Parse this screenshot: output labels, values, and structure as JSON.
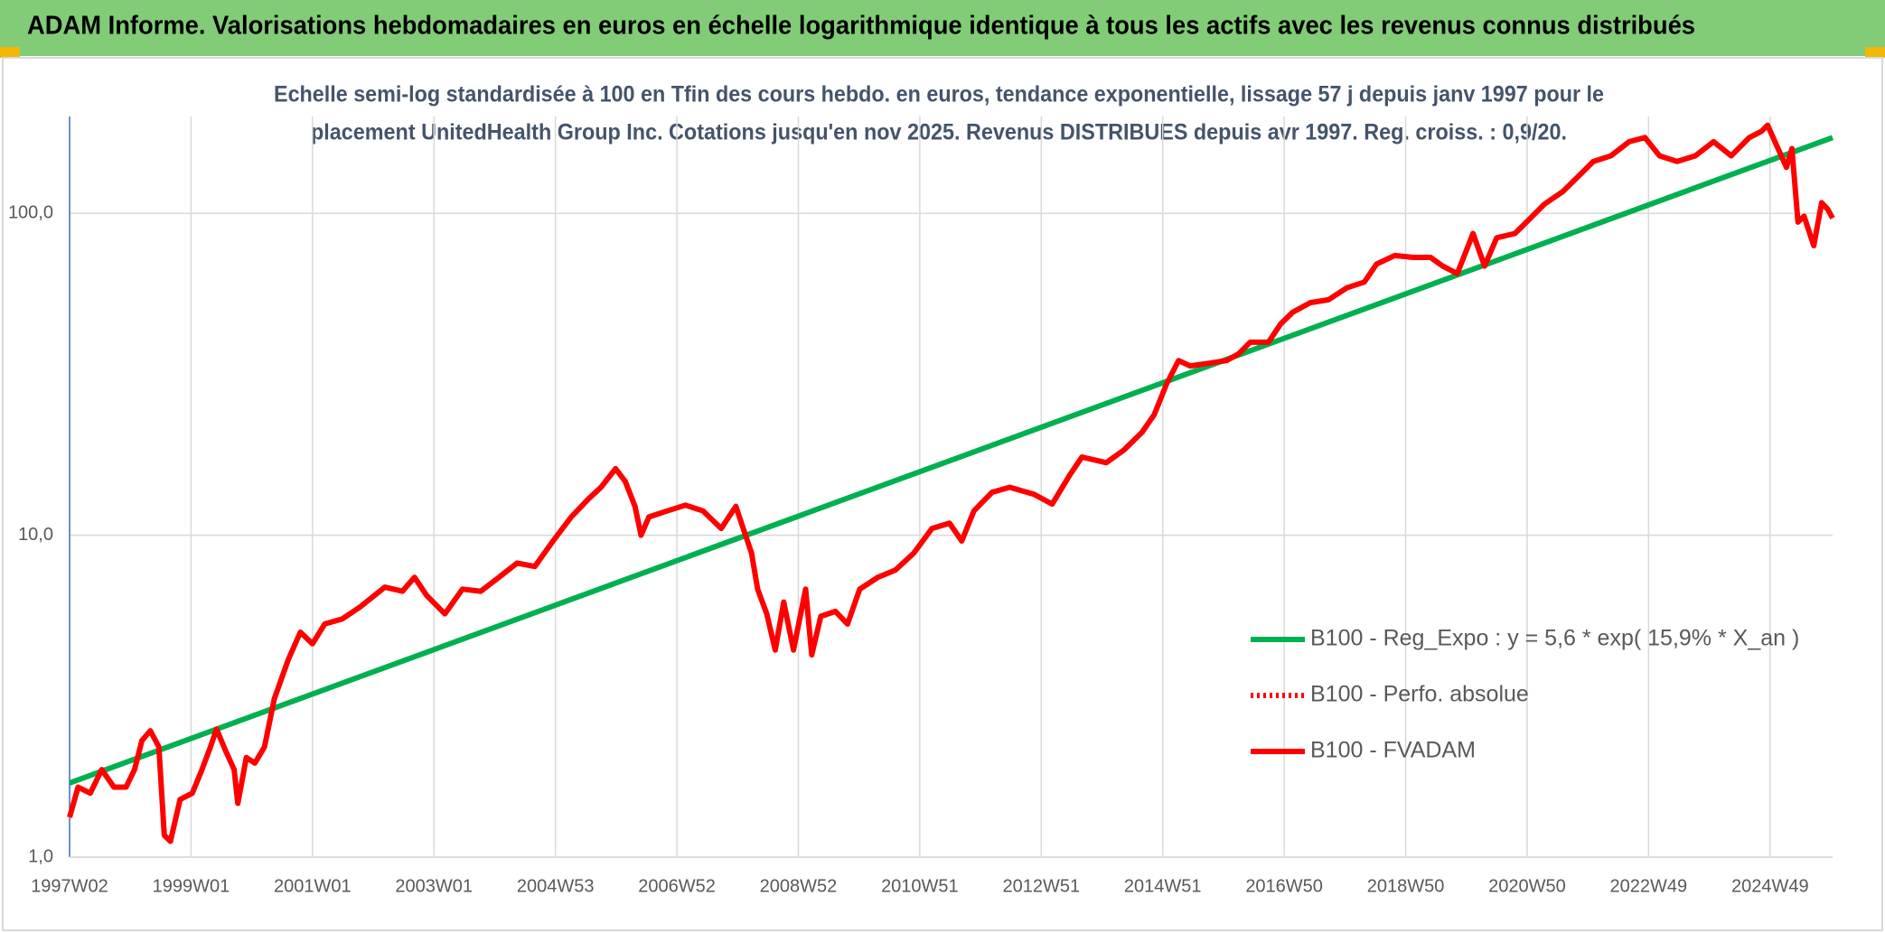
{
  "chart_data": {
    "type": "line",
    "title": "ADAM Informe. Valorisations hebdomadaires en euros en échelle logarithmique identique à tous les actifs avec les revenus connus distribués",
    "subtitle": [
      "Echelle semi-log standardisée à 100 en Tfin des cours hebdo. en euros, tendance exponentielle, lissage 57 j depuis janv 1997 pour le",
      "placement UnitedHealth Group Inc. Cotations jusqu'en nov 2025. Revenus DISTRIBUES depuis avr 1997. Reg. croiss. : 0,9/20."
    ],
    "log_scale": true,
    "grid": true,
    "legend": "center right",
    "xlim": [
      1997.0,
      2026.03
    ],
    "xticks": [
      {
        "value": 1997.0,
        "label": "1997W02"
      },
      {
        "value": 1999.0,
        "label": "1999W01"
      },
      {
        "value": 2001.0,
        "label": "2001W01"
      },
      {
        "value": 2003.0,
        "label": "2003W01"
      },
      {
        "value": 2005.0,
        "label": "2004W53"
      },
      {
        "value": 2007.0,
        "label": "2006W52"
      },
      {
        "value": 2009.0,
        "label": "2008W52"
      },
      {
        "value": 2011.0,
        "label": "2010W51"
      },
      {
        "value": 2013.0,
        "label": "2012W51"
      },
      {
        "value": 2015.0,
        "label": "2014W51"
      },
      {
        "value": 2017.0,
        "label": "2016W50"
      },
      {
        "value": 2019.0,
        "label": "2018W50"
      },
      {
        "value": 2021.0,
        "label": "2020W50"
      },
      {
        "value": 2023.0,
        "label": "2022W49"
      },
      {
        "value": 2025.0,
        "label": "2024W49"
      }
    ],
    "ylim": [
      1,
      200
    ],
    "yticks": [
      {
        "value": 1,
        "label": "1,0"
      },
      {
        "value": 10,
        "label": "10,0"
      },
      {
        "value": 100,
        "label": "100,0"
      }
    ],
    "series": [
      {
        "name": "B100 - Reg_Expo : y = 5,6 * exp( 15,9% *  X_an )",
        "color": "#00b050",
        "style": "solid",
        "x": [
          1997.0,
          2026.03
        ],
        "values": [
          1.7,
          172
        ]
      },
      {
        "name": "B100 - Perfo. absolue",
        "color": "#ff0000",
        "style": "dotted",
        "x": [],
        "values": []
      },
      {
        "name": "B100 - FVADAM",
        "color": "#ff0000",
        "style": "solid",
        "x": [
          1997.0,
          1997.14,
          1997.34,
          1997.53,
          1997.73,
          1997.93,
          1998.07,
          1998.19,
          1998.33,
          1998.47,
          1998.56,
          1998.66,
          1998.82,
          1999.02,
          1999.18,
          1999.32,
          1999.42,
          1999.57,
          1999.71,
          1999.77,
          1999.91,
          2000.05,
          2000.21,
          2000.37,
          2000.6,
          2000.8,
          2001.0,
          2001.2,
          2001.49,
          2001.79,
          2002.19,
          2002.48,
          2002.68,
          2002.88,
          2003.18,
          2003.47,
          2003.77,
          2004.07,
          2004.37,
          2004.66,
          2004.96,
          2005.26,
          2005.55,
          2005.75,
          2005.99,
          2006.15,
          2006.31,
          2006.41,
          2006.54,
          2006.84,
          2007.14,
          2007.43,
          2007.73,
          2007.97,
          2008.13,
          2008.23,
          2008.33,
          2008.48,
          2008.62,
          2008.76,
          2008.92,
          2009.12,
          2009.22,
          2009.37,
          2009.61,
          2009.81,
          2010.01,
          2010.31,
          2010.6,
          2010.9,
          2011.2,
          2011.49,
          2011.69,
          2011.89,
          2012.19,
          2012.48,
          2012.88,
          2013.18,
          2013.47,
          2013.67,
          2014.07,
          2014.36,
          2014.66,
          2014.86,
          2015.06,
          2015.26,
          2015.45,
          2015.75,
          2016.05,
          2016.25,
          2016.44,
          2016.74,
          2016.94,
          2017.14,
          2017.43,
          2017.73,
          2018.03,
          2018.32,
          2018.52,
          2018.82,
          2019.12,
          2019.41,
          2019.61,
          2019.85,
          2020.11,
          2020.3,
          2020.5,
          2020.8,
          2020.99,
          2021.29,
          2021.59,
          2021.89,
          2022.09,
          2022.38,
          2022.68,
          2022.94,
          2023.18,
          2023.47,
          2023.77,
          2024.07,
          2024.36,
          2024.66,
          2024.86,
          2024.96,
          2025.12,
          2025.27,
          2025.36,
          2025.46,
          2025.56,
          2025.72,
          2025.85,
          2025.95,
          2026.03
        ],
        "values": [
          1.33,
          1.65,
          1.58,
          1.87,
          1.65,
          1.65,
          1.87,
          2.3,
          2.47,
          2.2,
          1.17,
          1.12,
          1.51,
          1.58,
          1.87,
          2.2,
          2.5,
          2.14,
          1.87,
          1.47,
          2.04,
          1.96,
          2.2,
          3.1,
          4.1,
          5.0,
          4.6,
          5.3,
          5.5,
          6.0,
          6.9,
          6.7,
          7.4,
          6.5,
          5.7,
          6.8,
          6.7,
          7.4,
          8.2,
          8.0,
          9.6,
          11.4,
          13.0,
          14.1,
          16.1,
          14.7,
          12.3,
          10.0,
          11.4,
          11.9,
          12.4,
          11.9,
          10.5,
          12.3,
          10.0,
          8.8,
          6.8,
          5.7,
          4.4,
          6.2,
          4.4,
          6.8,
          4.25,
          5.6,
          5.8,
          5.3,
          6.8,
          7.4,
          7.8,
          8.8,
          10.5,
          10.9,
          9.6,
          11.9,
          13.6,
          14.1,
          13.4,
          12.5,
          15.4,
          17.5,
          16.8,
          18.4,
          20.9,
          23.7,
          29.4,
          34.9,
          33.6,
          34.2,
          34.9,
          36.6,
          39.8,
          39.8,
          45.3,
          49.3,
          52.8,
          53.9,
          58.7,
          61.2,
          69.6,
          74,
          73,
          73,
          68.6,
          65,
          86.6,
          68.6,
          84,
          86.6,
          94,
          107,
          117,
          133,
          145,
          151,
          167,
          172,
          151,
          145,
          151,
          167,
          151,
          172,
          180,
          188,
          161,
          139,
          159,
          94,
          98,
          79.4,
          108,
          103,
          96.6
        ]
      }
    ]
  }
}
